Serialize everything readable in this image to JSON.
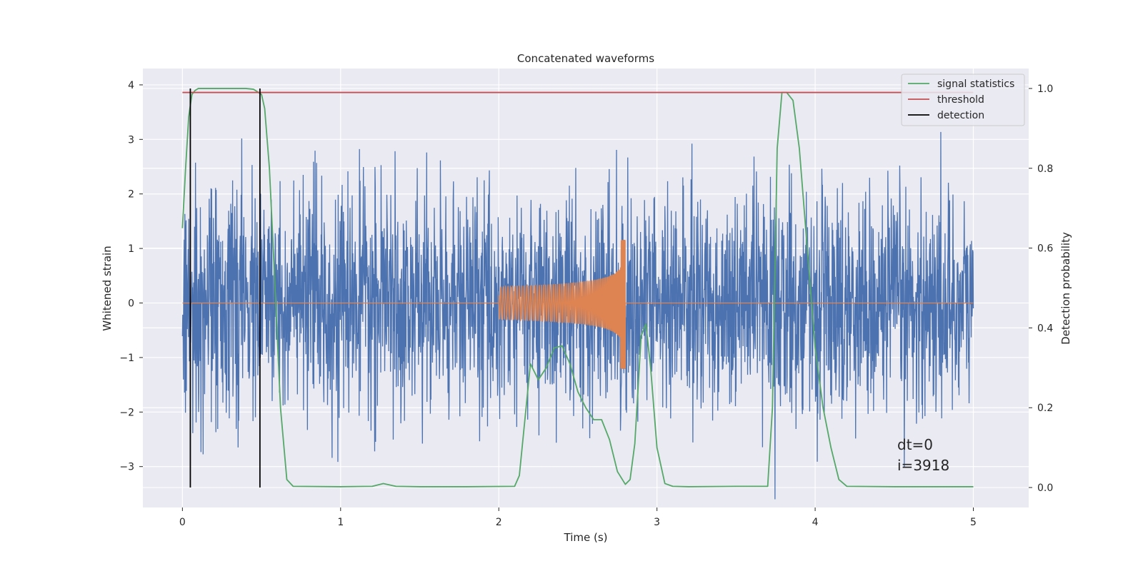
{
  "chart_data": {
    "type": "line",
    "title": "Concatenated waveforms",
    "xlabel": "Time (s)",
    "ylabel": "Whitened strain",
    "ylabel_right": "Detection probability",
    "xlim": [
      -0.25,
      5.35
    ],
    "ylim": [
      -3.75,
      4.3
    ],
    "ylim_right": [
      -0.05,
      1.05
    ],
    "xticks": [
      0,
      1,
      2,
      3,
      4,
      5
    ],
    "yticks": [
      -3,
      -2,
      -1,
      0,
      1,
      2,
      3,
      4
    ],
    "yticks_right": [
      0.0,
      0.2,
      0.4,
      0.6,
      0.8,
      1.0
    ],
    "grid": true,
    "legend_position": "top-right",
    "colors": {
      "background": "#eaeaf2",
      "strain": "#4c72b0",
      "injection": "#dd8452",
      "signal": "#55a868",
      "threshold": "#c44e52",
      "detection": "#000000"
    },
    "series": [
      {
        "name": "signal statistics",
        "axis": "right",
        "color": "#55a868",
        "x": [
          0.0,
          0.02,
          0.04,
          0.06,
          0.08,
          0.1,
          0.2,
          0.3,
          0.4,
          0.45,
          0.5,
          0.52,
          0.55,
          0.58,
          0.62,
          0.66,
          0.7,
          1.0,
          1.2,
          1.27,
          1.35,
          1.5,
          1.8,
          2.1,
          2.13,
          2.16,
          2.2,
          2.25,
          2.3,
          2.35,
          2.4,
          2.45,
          2.5,
          2.55,
          2.6,
          2.65,
          2.7,
          2.75,
          2.8,
          2.83,
          2.86,
          2.9,
          2.93,
          2.96,
          3.0,
          3.05,
          3.1,
          3.2,
          3.5,
          3.7,
          3.73,
          3.76,
          3.79,
          3.82,
          3.86,
          3.9,
          3.95,
          4.0,
          4.05,
          4.1,
          4.15,
          4.2,
          4.5,
          5.0
        ],
        "y": [
          0.65,
          0.8,
          0.93,
          0.985,
          0.995,
          1.0,
          1.0,
          1.0,
          1.0,
          0.998,
          0.985,
          0.95,
          0.8,
          0.55,
          0.2,
          0.02,
          0.003,
          0.002,
          0.003,
          0.01,
          0.003,
          0.002,
          0.002,
          0.003,
          0.03,
          0.15,
          0.31,
          0.27,
          0.3,
          0.35,
          0.355,
          0.31,
          0.24,
          0.2,
          0.17,
          0.17,
          0.12,
          0.04,
          0.008,
          0.02,
          0.11,
          0.38,
          0.41,
          0.3,
          0.1,
          0.01,
          0.003,
          0.002,
          0.003,
          0.003,
          0.2,
          0.85,
          0.99,
          0.99,
          0.97,
          0.85,
          0.6,
          0.35,
          0.2,
          0.1,
          0.02,
          0.003,
          0.002,
          0.002
        ]
      },
      {
        "name": "threshold",
        "axis": "right",
        "color": "#c44e52",
        "x": [
          0.0,
          5.0
        ],
        "y": [
          0.99,
          0.99
        ]
      },
      {
        "name": "detection",
        "axis": "right",
        "color": "#000000",
        "type": "vlines",
        "x": [
          0.05,
          0.49
        ],
        "ymin": 0.0,
        "ymax": 1.0
      }
    ],
    "background_traces": [
      {
        "color": "#4c72b0",
        "axis": "left",
        "description_type": "noise",
        "t_start": 0.0,
        "t_end": 5.0
      },
      {
        "color": "#dd8452",
        "axis": "left",
        "description_type": "chirp",
        "t_start": 2.0,
        "t_end": 2.8
      }
    ],
    "annotations": [
      "dt=0",
      "i=3918"
    ]
  }
}
